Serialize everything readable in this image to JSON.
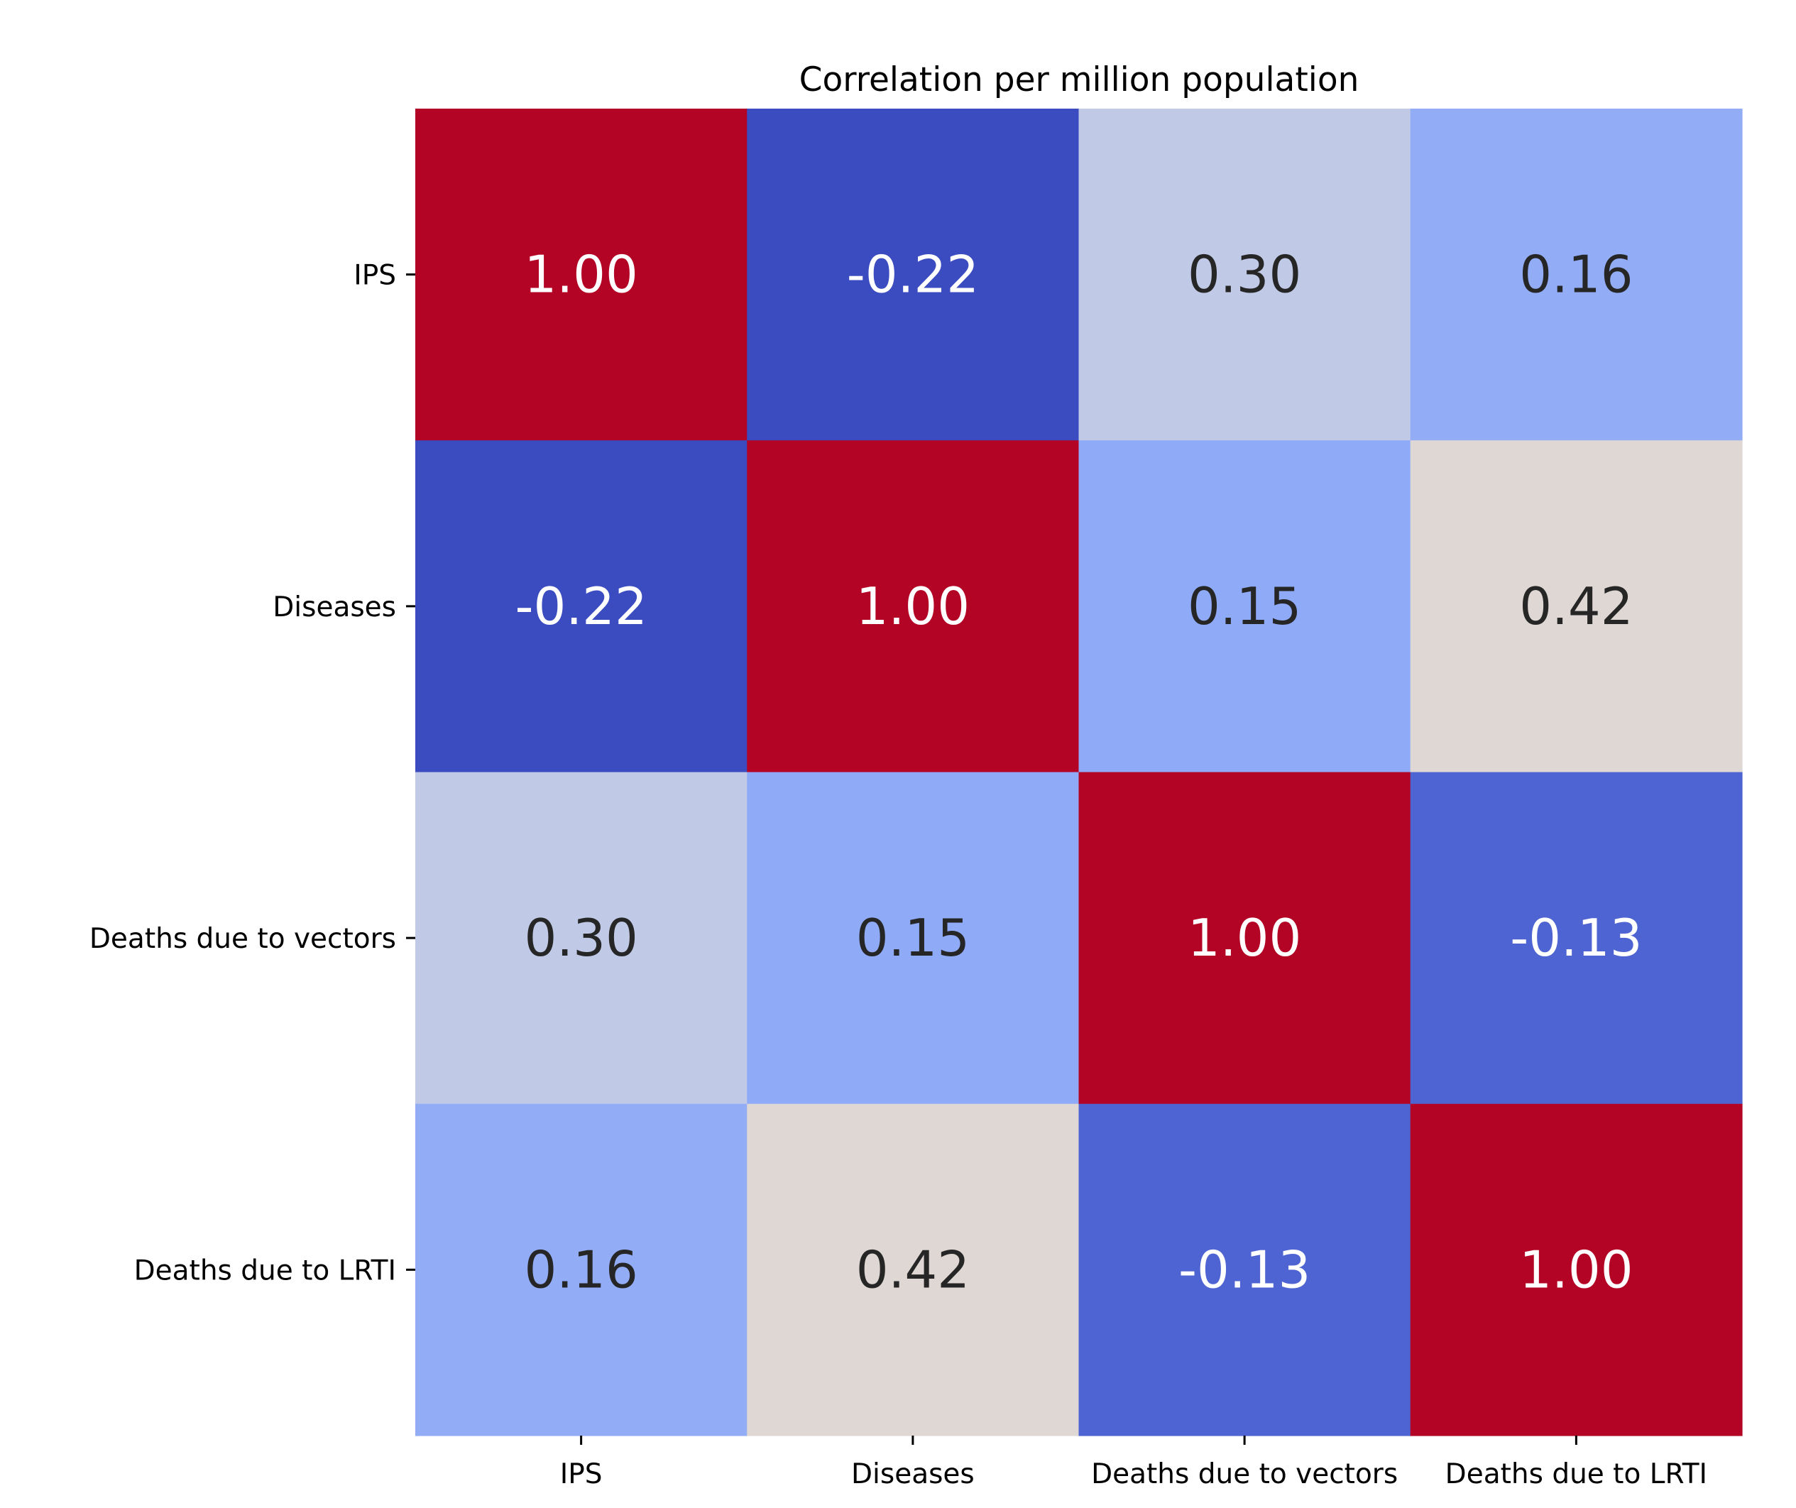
{
  "chart_data": {
    "type": "heatmap",
    "title": "Correlation per million population",
    "x_categories": [
      "IPS",
      "Diseases",
      "Deaths due to vectors",
      "Deaths due to LRTI"
    ],
    "y_categories": [
      "IPS",
      "Diseases",
      "Deaths due to vectors",
      "Deaths due to LRTI"
    ],
    "values": [
      [
        1.0,
        -0.22,
        0.3,
        0.16
      ],
      [
        -0.22,
        1.0,
        0.15,
        0.42
      ],
      [
        0.3,
        0.15,
        1.0,
        -0.13
      ],
      [
        0.16,
        0.42,
        -0.13,
        1.0
      ]
    ],
    "cell_labels": [
      [
        "1.00",
        "-0.22",
        "0.30",
        "0.16"
      ],
      [
        "-0.22",
        "1.00",
        "0.15",
        "0.42"
      ],
      [
        "0.30",
        "0.15",
        "1.00",
        "-0.13"
      ],
      [
        "0.16",
        "0.42",
        "-0.13",
        "1.00"
      ]
    ],
    "colormap": "coolwarm",
    "colors": {
      "high": "#b40426",
      "low": "#3b4cc0",
      "text_dark": "#262626",
      "text_light": "#ffffff"
    },
    "colorbar": false,
    "grid": false
  }
}
